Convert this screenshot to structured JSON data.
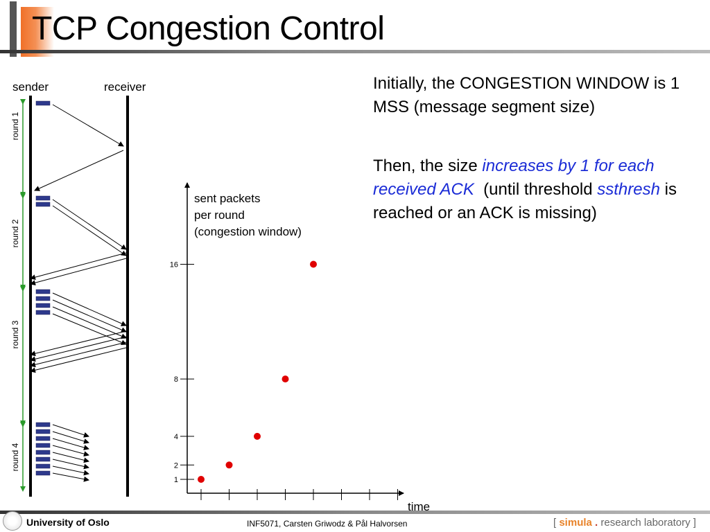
{
  "header": {
    "title": "TCP Congestion Control"
  },
  "diagram": {
    "sender_label": "sender",
    "receiver_label": "receiver",
    "rounds": [
      "round 1",
      "round 2",
      "round 3",
      "round 4"
    ]
  },
  "graph": {
    "ylabel_line1": "sent packets",
    "ylabel_line2": "per round",
    "ylabel_line3": "(congestion window)",
    "xlabel": "time",
    "y_ticks": [
      "16",
      "8",
      "4",
      "2",
      "1"
    ],
    "points": [
      1,
      2,
      4,
      8,
      16
    ],
    "point_color": "#e00000"
  },
  "text": {
    "para1": "Initially, the CONGESTION WINDOW is 1 MSS (message segment size)",
    "para2_a": "Then, the size ",
    "para2_em1": "increases by 1 for each received ACK",
    "para2_b": "  (until threshold ",
    "para2_em2": "ssthresh",
    "para2_c": " is reached or an ACK is missing)"
  },
  "footer": {
    "university": "University of Oslo",
    "course": "INF5071, Carsten Griwodz & Pål Halvorsen",
    "lab_open": "[ ",
    "lab_simula": "simula",
    "lab_dot": " . ",
    "lab_rest": "research laboratory ]"
  }
}
